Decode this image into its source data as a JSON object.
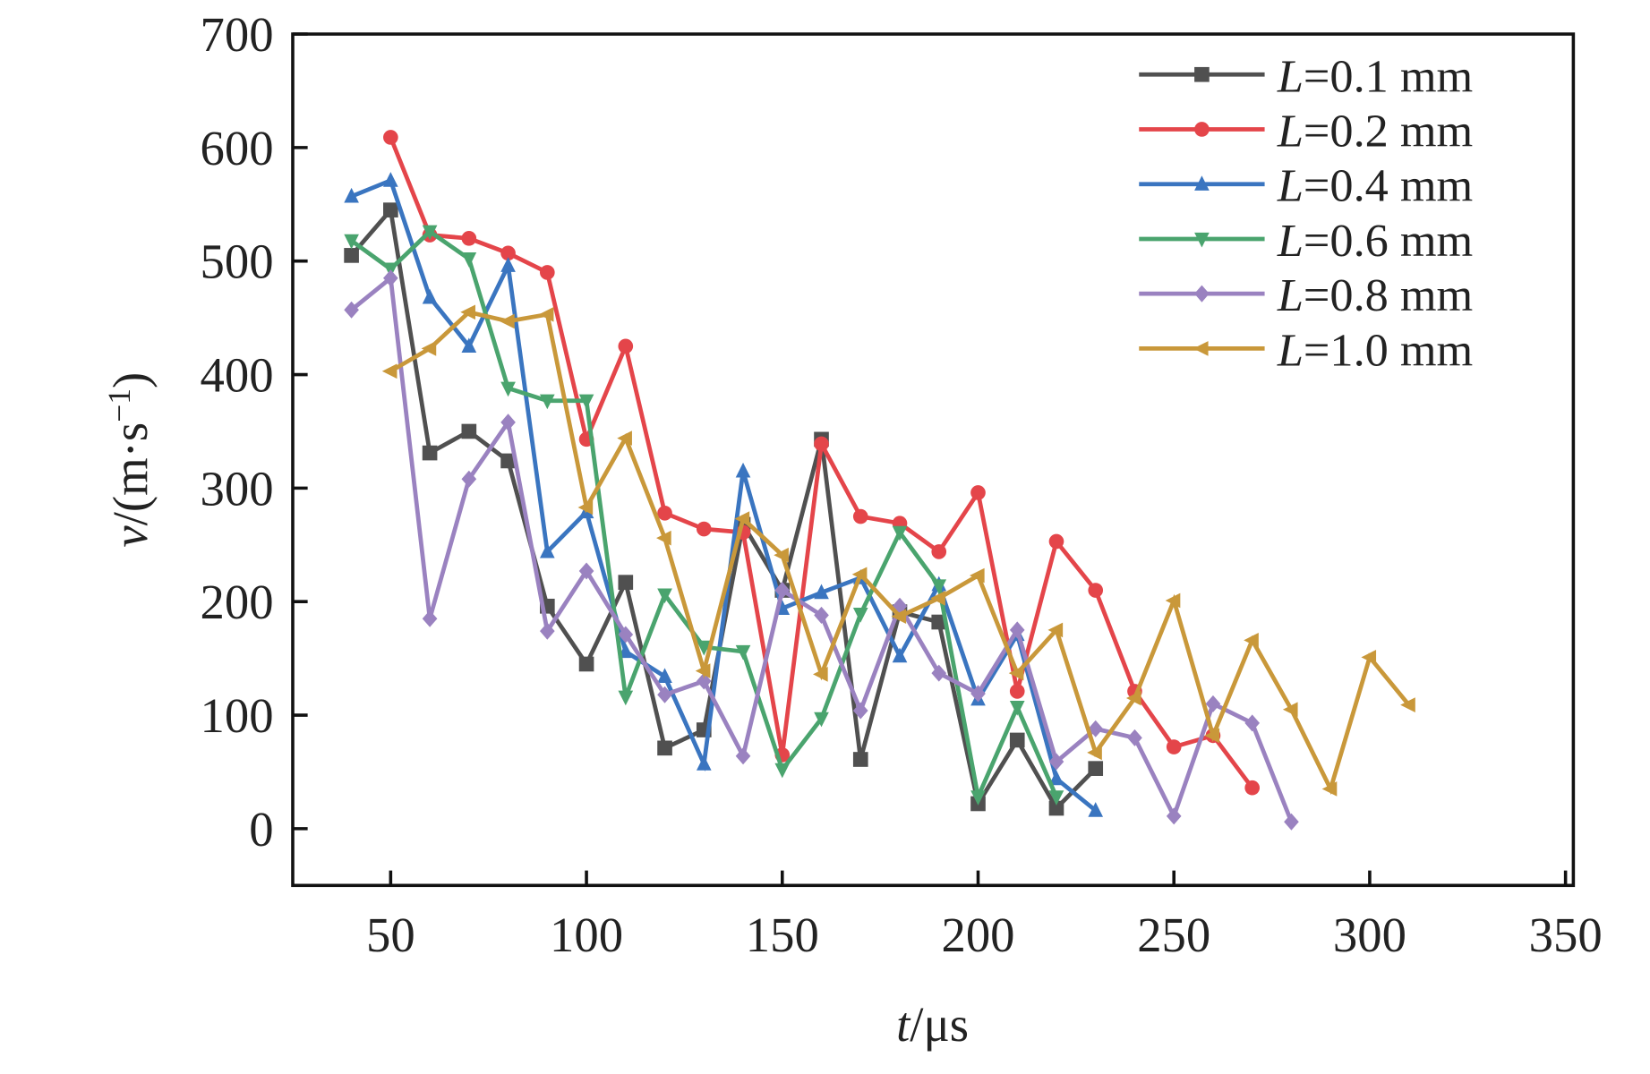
{
  "chart_data": {
    "type": "line",
    "title": "",
    "xlabel": "t/μs",
    "ylabel": "v/(m·s⁻¹)",
    "xlabel_parts": {
      "var": "t",
      "unit": "/μs"
    },
    "ylabel_parts": {
      "var": "v",
      "unit": "/(m·s",
      "sup": "−1",
      "close": ")"
    },
    "xlim": [
      25,
      352
    ],
    "ylim": [
      -50,
      700
    ],
    "xticks": [
      50,
      100,
      150,
      200,
      250,
      300,
      350
    ],
    "yticks": [
      0,
      100,
      200,
      300,
      400,
      500,
      600,
      700
    ],
    "grid": false,
    "legend_position": "top-right",
    "series": [
      {
        "name": "L=0.1 mm",
        "var": "L",
        "label": "=0.1 mm",
        "color": "#505050",
        "marker": "square",
        "x": [
          40,
          50,
          60,
          70,
          80,
          90,
          100,
          110,
          120,
          130,
          140,
          150,
          160,
          170,
          180,
          190,
          200,
          210,
          220,
          230
        ],
        "y": [
          505,
          545,
          331,
          350,
          324,
          196,
          145,
          217,
          71,
          87,
          268,
          210,
          343,
          61,
          191,
          182,
          22,
          78,
          18,
          53
        ]
      },
      {
        "name": "L=0.2 mm",
        "var": "L",
        "label": "=0.2 mm",
        "color": "#e4454a",
        "marker": "circle",
        "x": [
          50,
          60,
          70,
          80,
          90,
          100,
          110,
          120,
          130,
          140,
          150,
          160,
          170,
          180,
          190,
          200,
          210,
          220,
          230,
          240,
          250,
          260,
          270
        ],
        "y": [
          609,
          523,
          520,
          507,
          490,
          343,
          425,
          278,
          264,
          261,
          65,
          339,
          275,
          269,
          244,
          296,
          121,
          253,
          210,
          121,
          72,
          82,
          36
        ]
      },
      {
        "name": "L=0.4 mm",
        "var": "L",
        "label": "=0.4 mm",
        "color": "#3a75c0",
        "marker": "triangle-up",
        "x": [
          40,
          50,
          60,
          70,
          80,
          90,
          100,
          110,
          120,
          130,
          140,
          150,
          160,
          170,
          180,
          190,
          200,
          210,
          220,
          230
        ],
        "y": [
          557,
          571,
          468,
          425,
          496,
          244,
          279,
          156,
          134,
          57,
          315,
          194,
          208,
          221,
          152,
          215,
          114,
          171,
          44,
          16
        ]
      },
      {
        "name": "L=0.6 mm",
        "var": "L",
        "label": "=0.6 mm",
        "color": "#4aa46e",
        "marker": "triangle-down",
        "x": [
          40,
          50,
          60,
          70,
          80,
          90,
          100,
          110,
          120,
          130,
          140,
          150,
          160,
          170,
          180,
          190,
          200,
          210,
          220
        ],
        "y": [
          518,
          493,
          526,
          502,
          388,
          377,
          377,
          116,
          206,
          160,
          156,
          52,
          97,
          189,
          261,
          214,
          28,
          107,
          28
        ]
      },
      {
        "name": "L=0.8 mm",
        "var": "L",
        "label": "=0.8 mm",
        "color": "#9a82c0",
        "marker": "diamond",
        "x": [
          40,
          50,
          60,
          70,
          80,
          90,
          100,
          110,
          120,
          130,
          140,
          150,
          160,
          170,
          180,
          190,
          200,
          210,
          220,
          230,
          240,
          250,
          260,
          270,
          280
        ],
        "y": [
          457,
          485,
          185,
          308,
          358,
          174,
          227,
          171,
          118,
          130,
          64,
          210,
          188,
          104,
          196,
          137,
          119,
          175,
          59,
          88,
          80,
          11,
          110,
          93,
          6
        ]
      },
      {
        "name": "L=1.0 mm",
        "var": "L",
        "label": "=1.0 mm",
        "color": "#c9983a",
        "marker": "triangle-left",
        "x": [
          50,
          60,
          70,
          80,
          90,
          100,
          110,
          120,
          130,
          140,
          150,
          160,
          170,
          180,
          190,
          200,
          210,
          220,
          230,
          240,
          250,
          260,
          270,
          280,
          290,
          300,
          310
        ],
        "y": [
          403,
          423,
          455,
          447,
          453,
          283,
          344,
          256,
          139,
          273,
          241,
          136,
          224,
          187,
          203,
          223,
          137,
          175,
          67,
          115,
          201,
          82,
          166,
          105,
          35,
          151,
          109
        ]
      }
    ]
  }
}
